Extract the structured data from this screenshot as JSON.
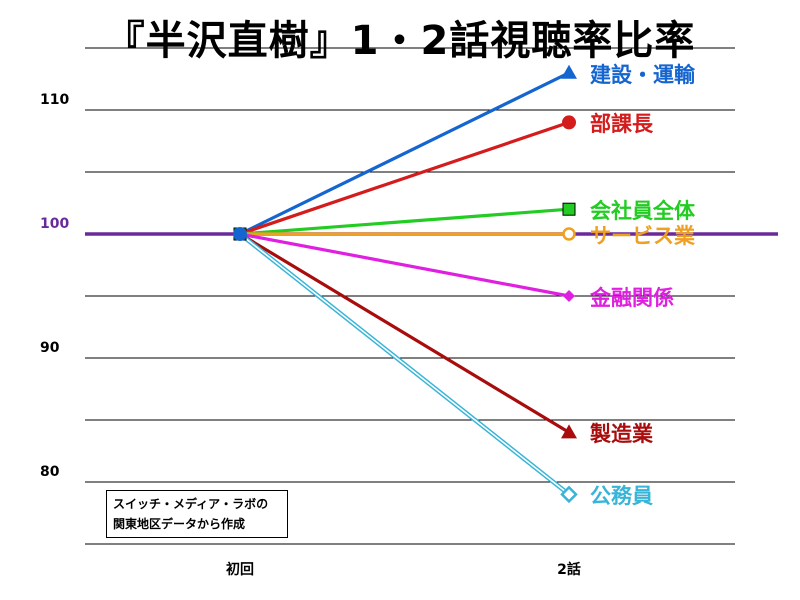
{
  "chart_data": {
    "type": "line",
    "title": "『半沢直樹』1・2話視聴率比率",
    "categories": [
      "初回",
      "2話"
    ],
    "ylim": [
      75,
      118
    ],
    "yticks": [
      80,
      90,
      100,
      110
    ],
    "ygrid_step": 5,
    "grid": true,
    "reference_line": {
      "value": 100,
      "color": "#6a2a9a"
    },
    "series": [
      {
        "name": "建設・運輸",
        "values": [
          100,
          113
        ],
        "color": "#1565d0",
        "marker": "triangle"
      },
      {
        "name": "部課長",
        "values": [
          100,
          109
        ],
        "color": "#d41c1c",
        "marker": "circle"
      },
      {
        "name": "会社員全体",
        "values": [
          100,
          102
        ],
        "color": "#22cc22",
        "marker": "square"
      },
      {
        "name": "サービス業",
        "values": [
          100,
          100
        ],
        "color": "#f0a020",
        "marker": "open-circle"
      },
      {
        "name": "金融関係",
        "values": [
          100,
          95
        ],
        "color": "#e020e0",
        "marker": "diamond"
      },
      {
        "name": "製造業",
        "values": [
          100,
          84
        ],
        "color": "#a80c0c",
        "marker": "triangle"
      },
      {
        "name": "公務員",
        "values": [
          100,
          79
        ],
        "color": "#38b4d8",
        "marker": "open-diamond",
        "double_line": true
      }
    ]
  },
  "source_note": {
    "line1": "スイッチ・メディア・ラボの",
    "line2": "関東地区データから作成"
  }
}
